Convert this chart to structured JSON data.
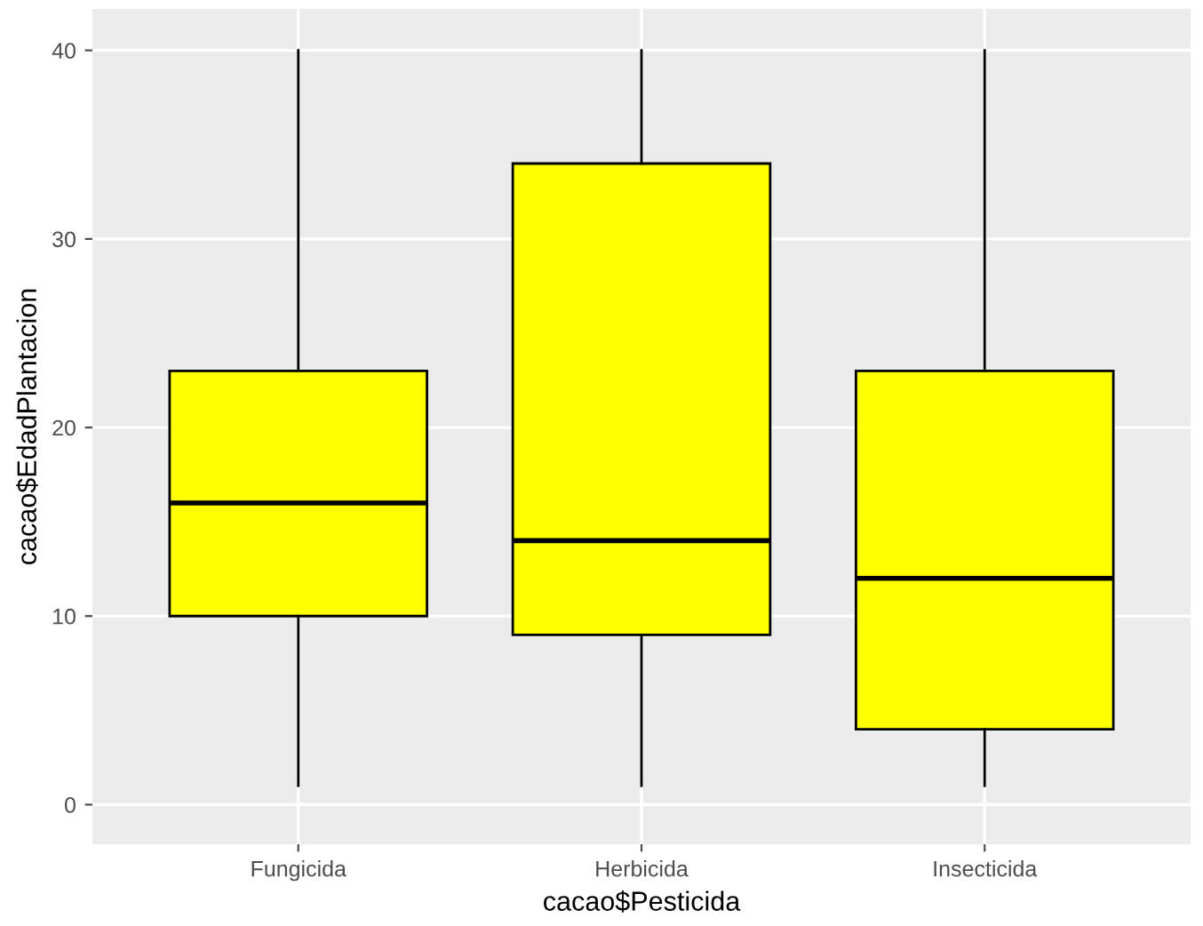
{
  "chart_data": {
    "type": "box",
    "xlabel": "cacao$Pesticida",
    "ylabel": "cacao$EdadPlantacion",
    "categories": [
      "Fungicida",
      "Herbicida",
      "Insecticida"
    ],
    "boxes": [
      {
        "low": 1,
        "q1": 10,
        "median": 16,
        "q3": 23,
        "high": 40
      },
      {
        "low": 1,
        "q1": 9,
        "median": 14,
        "q3": 34,
        "high": 40
      },
      {
        "low": 1,
        "q1": 4,
        "median": 12,
        "q3": 23,
        "high": 40
      }
    ],
    "color": "#ffff00",
    "ylim": [
      -2.1,
      42.2
    ],
    "yticks": [
      0,
      10,
      20,
      30,
      40
    ],
    "grid": true
  }
}
